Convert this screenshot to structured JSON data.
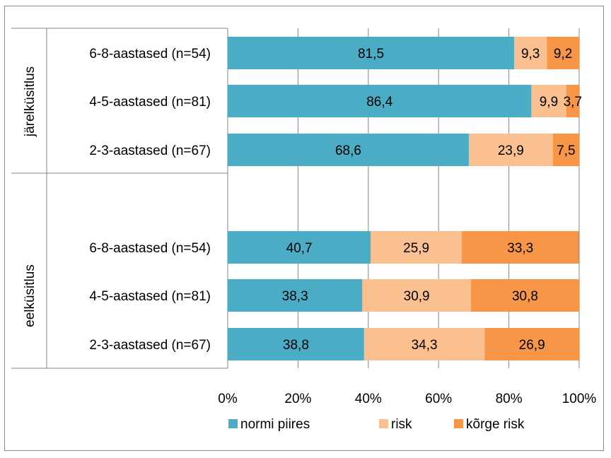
{
  "chart_data": {
    "type": "bar",
    "orientation": "horizontal",
    "stacked": "percent",
    "groups": [
      {
        "label": "järelküsitlus",
        "categories": [
          "6-8-aastased (n=54)",
          "4-5-aastased (n=81)",
          "2-3-aastased (n=67)"
        ],
        "series_values": {
          "normi piires": [
            81.5,
            86.4,
            68.6
          ],
          "risk": [
            9.3,
            9.9,
            23.9
          ],
          "kõrge risk": [
            9.2,
            3.7,
            7.5
          ]
        },
        "labels": {
          "normi piires": [
            "81,5",
            "86,4",
            "68,6"
          ],
          "risk": [
            "9,3",
            "9,9",
            "23,9"
          ],
          "kõrge risk": [
            "9,2",
            "3,7",
            "7,5"
          ]
        }
      },
      {
        "label": "eelküsitlus",
        "categories": [
          "6-8-aastased (n=54)",
          "4-5-aastased (n=81)",
          "2-3-aastased (n=67)"
        ],
        "series_values": {
          "normi piires": [
            40.7,
            38.3,
            38.8
          ],
          "risk": [
            25.9,
            30.9,
            34.3
          ],
          "kõrge risk": [
            33.3,
            30.8,
            26.9
          ]
        },
        "labels": {
          "normi piires": [
            "40,7",
            "38,3",
            "38,8"
          ],
          "risk": [
            "25,9",
            "30,9",
            "34,3"
          ],
          "kõrge risk": [
            "33,3",
            "30,8",
            "26,9"
          ]
        }
      }
    ],
    "series": [
      {
        "name": "normi piires",
        "color": "#4bacc6"
      },
      {
        "name": "risk",
        "color": "#fac090"
      },
      {
        "name": "kõrge risk",
        "color": "#f79646"
      }
    ],
    "xticks": [
      "0%",
      "20%",
      "40%",
      "60%",
      "80%",
      "100%"
    ],
    "xlim": [
      0,
      100
    ],
    "grid": true,
    "legend": "bottom"
  }
}
